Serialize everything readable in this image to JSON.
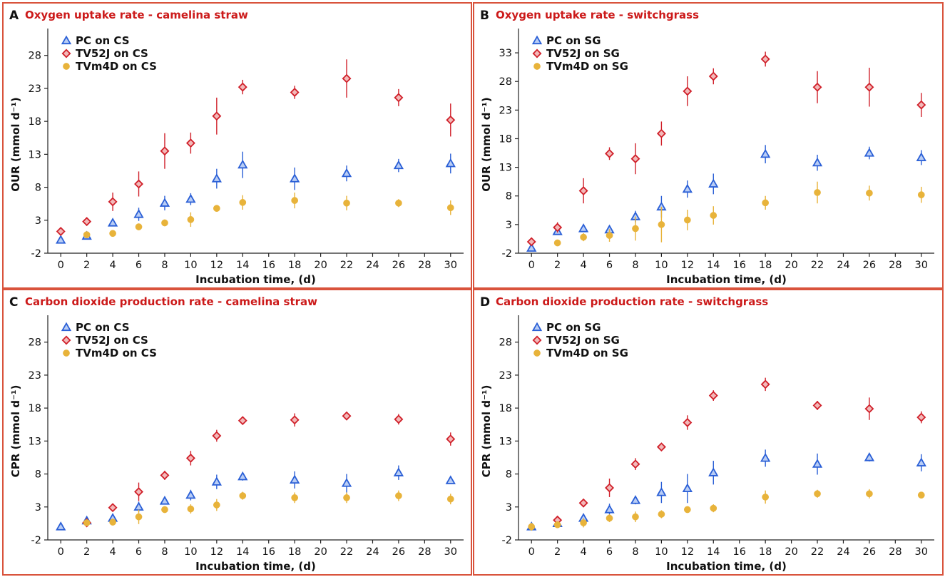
{
  "figure": {
    "xlabel": "Incubation time, (d)",
    "x_ticks": [
      0,
      2,
      4,
      6,
      8,
      10,
      12,
      14,
      16,
      18,
      20,
      22,
      24,
      26,
      28,
      30
    ],
    "xlim": [
      -1,
      31
    ],
    "colors": {
      "PC": "#2a5fd6",
      "TV52J": "#d0202a",
      "TVm4D": "#e8b33a",
      "frame": "#d9533c",
      "title": "#cc1a1a"
    },
    "markers": {
      "PC": "triangle",
      "TV52J": "diamond",
      "TVm4D": "circle"
    }
  },
  "chart_data": [
    {
      "type": "scatter",
      "panel_label": "A",
      "title": "Oxygen uptake rate - camelina straw",
      "ylabel": "OUR (mmol d⁻¹)",
      "xlabel": "Incubation time, (d)",
      "ylim": [
        -2,
        31
      ],
      "y_ticks": [
        -2,
        3,
        8,
        13,
        18,
        23,
        28
      ],
      "series": [
        {
          "name": "PC on CS",
          "key": "PC",
          "x": [
            0,
            2,
            4,
            6,
            8,
            10,
            12,
            14,
            18,
            22,
            26,
            30
          ],
          "y": [
            0,
            0.6,
            2.6,
            3.9,
            5.6,
            6.2,
            9.3,
            11.4,
            9.3,
            10.1,
            11.3,
            11.6
          ],
          "err": [
            0.2,
            0.3,
            0.4,
            1.0,
            1.1,
            0.9,
            1.5,
            2.0,
            1.7,
            1.2,
            1.0,
            1.5
          ]
        },
        {
          "name": "TV52J on CS",
          "key": "TV52J",
          "x": [
            0,
            2,
            4,
            6,
            8,
            10,
            12,
            14,
            18,
            22,
            26,
            30
          ],
          "y": [
            1.3,
            2.8,
            5.8,
            8.5,
            13.5,
            14.7,
            18.8,
            23.2,
            22.4,
            24.5,
            21.6,
            18.2
          ],
          "err": [
            0.2,
            0.3,
            1.4,
            1.9,
            2.7,
            1.6,
            2.8,
            1.1,
            1.0,
            2.9,
            1.3,
            2.5
          ]
        },
        {
          "name": "TVm4D on CS",
          "key": "TVm4D",
          "x": [
            2,
            4,
            6,
            8,
            10,
            12,
            14,
            18,
            22,
            26,
            30
          ],
          "y": [
            0.8,
            1.0,
            2.0,
            2.6,
            3.1,
            4.8,
            5.7,
            6.0,
            5.6,
            5.6,
            4.9
          ],
          "err": [
            0.3,
            0.2,
            0.4,
            0.5,
            1.1,
            0.4,
            1.1,
            1.2,
            1.1,
            0.6,
            1.1
          ]
        }
      ]
    },
    {
      "type": "scatter",
      "panel_label": "B",
      "title": "Oxygen uptake rate - switchgrass",
      "ylabel": "OUR (mmol d⁻¹)",
      "xlabel": "Incubation time, (d)",
      "ylim": [
        -2,
        36
      ],
      "y_ticks": [
        -2,
        3,
        8,
        13,
        18,
        23,
        28,
        33
      ],
      "series": [
        {
          "name": "PC on SG",
          "key": "PC",
          "x": [
            0,
            2,
            4,
            6,
            8,
            10,
            12,
            14,
            18,
            22,
            26,
            30
          ],
          "y": [
            -1.1,
            1.8,
            2.3,
            2.1,
            4.4,
            6.1,
            9.2,
            10.1,
            15.3,
            13.8,
            15.5,
            14.7
          ],
          "err": [
            0.3,
            0.5,
            0.6,
            0.6,
            1.0,
            1.9,
            1.5,
            1.8,
            1.6,
            1.4,
            1.1,
            1.3
          ]
        },
        {
          "name": "TV52J on SG",
          "key": "TV52J",
          "x": [
            0,
            2,
            4,
            6,
            8,
            10,
            12,
            14,
            18,
            22,
            26,
            30
          ],
          "y": [
            0,
            2.5,
            8.9,
            15.4,
            14.5,
            18.9,
            26.3,
            28.9,
            31.9,
            27.0,
            27.0,
            23.9
          ],
          "err": [
            0.3,
            0.9,
            2.2,
            1.1,
            2.7,
            2.1,
            2.6,
            1.4,
            1.3,
            2.8,
            3.4,
            2.1
          ]
        },
        {
          "name": "TVm4D on SG",
          "key": "TVm4D",
          "x": [
            2,
            4,
            6,
            8,
            10,
            12,
            14,
            18,
            22,
            26,
            30
          ],
          "y": [
            -0.2,
            0.8,
            1.1,
            2.3,
            3.0,
            3.8,
            4.6,
            6.8,
            8.6,
            8.5,
            8.2
          ],
          "err": [
            0.5,
            0.7,
            1.1,
            2.1,
            3.1,
            1.8,
            1.6,
            1.2,
            1.9,
            1.3,
            1.4
          ]
        }
      ]
    },
    {
      "type": "scatter",
      "panel_label": "C",
      "title": "Carbon dioxide production rate - camelina straw",
      "ylabel": "CPR (mmol d⁻¹)",
      "xlabel": "Incubation time, (d)",
      "ylim": [
        -2,
        31
      ],
      "y_ticks": [
        -2,
        3,
        8,
        13,
        18,
        23,
        28
      ],
      "series": [
        {
          "name": "PC on CS",
          "key": "PC",
          "x": [
            0,
            2,
            4,
            6,
            8,
            10,
            12,
            14,
            18,
            22,
            26,
            30
          ],
          "y": [
            0,
            0.9,
            1.3,
            3.0,
            3.9,
            4.8,
            6.8,
            7.6,
            7.1,
            6.6,
            8.2,
            7.0
          ],
          "err": [
            0.2,
            0.3,
            0.3,
            0.8,
            0.4,
            0.8,
            1.1,
            0.6,
            1.3,
            1.4,
            1.1,
            0.5
          ]
        },
        {
          "name": "TV52J on CS",
          "key": "TV52J",
          "x": [
            2,
            4,
            6,
            8,
            10,
            12,
            14,
            18,
            22,
            26,
            30
          ],
          "y": [
            0.6,
            2.9,
            5.3,
            7.8,
            10.4,
            13.8,
            16.1,
            16.2,
            16.8,
            16.3,
            13.3
          ],
          "err": [
            0.2,
            0.3,
            1.4,
            0.7,
            1.1,
            0.9,
            0.2,
            1.0,
            0.3,
            0.8,
            1.0
          ]
        },
        {
          "name": "TVm4D on CS",
          "key": "TVm4D",
          "x": [
            2,
            4,
            6,
            8,
            10,
            12,
            14,
            18,
            22,
            26,
            30
          ],
          "y": [
            0.6,
            0.7,
            1.5,
            2.6,
            2.7,
            3.3,
            4.7,
            4.4,
            4.4,
            4.7,
            4.2
          ],
          "err": [
            0.3,
            0.3,
            1.1,
            0.3,
            0.7,
            0.9,
            0.6,
            0.8,
            0.8,
            0.8,
            0.8
          ]
        }
      ]
    },
    {
      "type": "scatter",
      "panel_label": "D",
      "title": "Carbon dioxide production rate - switchgrass",
      "ylabel": "CPR (mmol d⁻¹)",
      "xlabel": "Incubation time, (d)",
      "ylim": [
        -2,
        31
      ],
      "y_ticks": [
        -2,
        3,
        8,
        13,
        18,
        23,
        28
      ],
      "series": [
        {
          "name": "PC on SG",
          "key": "PC",
          "x": [
            0,
            2,
            4,
            6,
            8,
            10,
            12,
            14,
            18,
            22,
            26,
            30
          ],
          "y": [
            0,
            0.5,
            1.3,
            2.6,
            4.0,
            5.2,
            5.8,
            8.2,
            10.4,
            9.5,
            10.5,
            9.7
          ],
          "err": [
            0.3,
            0.3,
            0.5,
            0.9,
            0.6,
            1.6,
            2.2,
            1.8,
            1.3,
            1.6,
            0.6,
            1.3
          ]
        },
        {
          "name": "TV52J on SG",
          "key": "TV52J",
          "x": [
            2,
            4,
            6,
            8,
            10,
            12,
            14,
            18,
            22,
            26,
            30
          ],
          "y": [
            1.0,
            3.6,
            5.9,
            9.5,
            12.1,
            15.8,
            19.9,
            21.6,
            18.4,
            17.9,
            16.6
          ],
          "err": [
            0.3,
            0.2,
            1.4,
            0.9,
            0.3,
            1.1,
            0.8,
            1.0,
            0.7,
            1.7,
            0.9
          ]
        },
        {
          "name": "TVm4D on SG",
          "key": "TVm4D",
          "x": [
            0,
            2,
            4,
            6,
            8,
            10,
            12,
            14,
            18,
            22,
            26,
            30
          ],
          "y": [
            0,
            0.3,
            0.6,
            1.3,
            1.5,
            1.9,
            2.6,
            2.8,
            4.5,
            5.0,
            5.0,
            4.8
          ],
          "err": [
            0.6,
            0.4,
            0.7,
            0.6,
            0.8,
            0.6,
            0.3,
            0.6,
            1.0,
            0.6,
            0.7,
            0.4
          ]
        }
      ]
    }
  ]
}
